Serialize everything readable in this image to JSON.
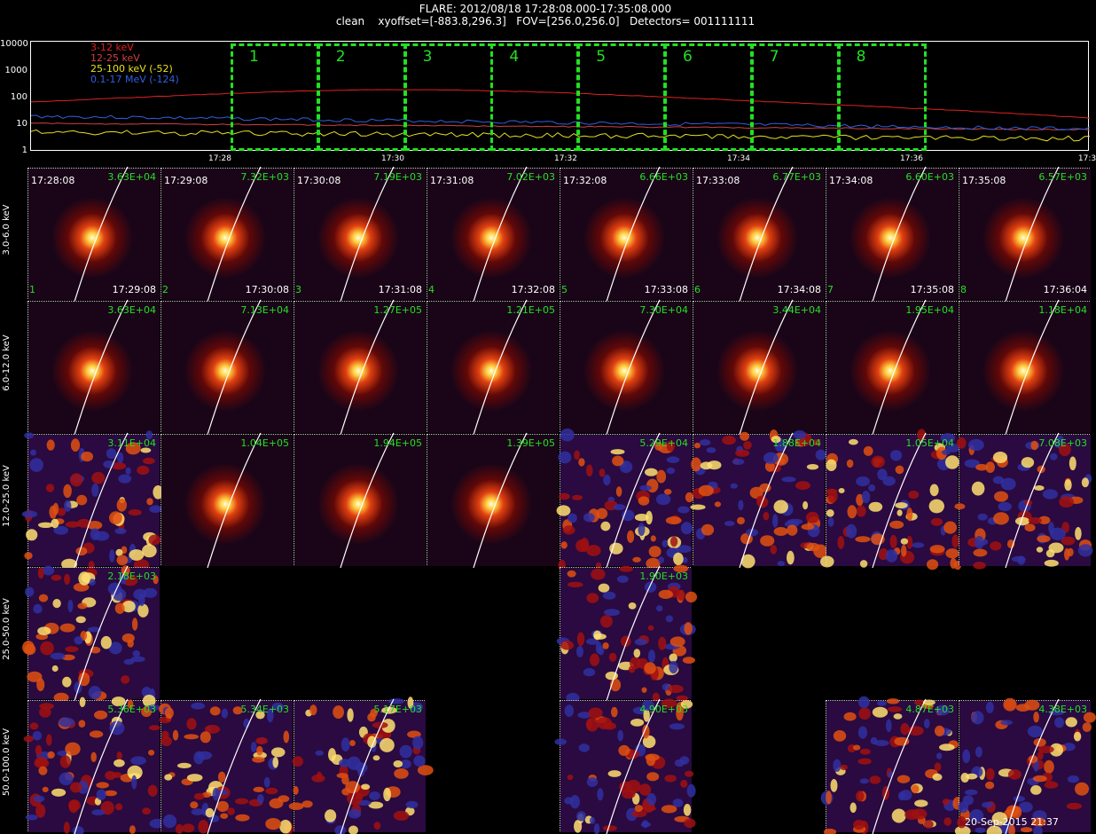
{
  "header": {
    "line1": "FLARE: 2012/08/18 17:28:08.000-17:35:08.000",
    "line2": "clean    xyoffset=[-883.8,296.3]   FOV=[256.0,256.0]   Detectors= 001111111"
  },
  "lightcurve": {
    "y_ticks": [
      "10000",
      "1000",
      "100",
      "10",
      "1"
    ],
    "x_ticks": [
      "17:28",
      "17:30",
      "17:32",
      "17:34",
      "17:36",
      "17:3"
    ],
    "legend": [
      {
        "label": "3-12 keV",
        "color": "#e02020"
      },
      {
        "label": "12-25 keV",
        "color": "#d04040"
      },
      {
        "label": "25-100 keV (-52)",
        "color": "#e8e020"
      },
      {
        "label": "0.1-17 MeV (-124)",
        "color": "#3060e0"
      }
    ],
    "intervals": [
      "1",
      "2",
      "3",
      "4",
      "5",
      "6",
      "7",
      "8"
    ]
  },
  "rows": [
    {
      "label": "3.0-6.0 keV",
      "panels": [
        {
          "num": "1",
          "start": "17:28:08",
          "end": "17:29:08",
          "value": "3.63E+04",
          "type": "source"
        },
        {
          "num": "2",
          "start": "17:29:08",
          "end": "17:30:08",
          "value": "7.32E+03",
          "type": "source"
        },
        {
          "num": "3",
          "start": "17:30:08",
          "end": "17:31:08",
          "value": "7.19E+03",
          "type": "source"
        },
        {
          "num": "4",
          "start": "17:31:08",
          "end": "17:32:08",
          "value": "7.02E+03",
          "type": "source"
        },
        {
          "num": "5",
          "start": "17:32:08",
          "end": "17:33:08",
          "value": "6.66E+03",
          "type": "source"
        },
        {
          "num": "6",
          "start": "17:33:08",
          "end": "17:34:08",
          "value": "6.77E+03",
          "type": "source"
        },
        {
          "num": "7",
          "start": "17:34:08",
          "end": "17:35:08",
          "value": "6.60E+03",
          "type": "source"
        },
        {
          "num": "8",
          "start": "17:35:08",
          "end": "17:36:04",
          "value": "6.57E+03",
          "type": "source"
        }
      ]
    },
    {
      "label": "6.0-12.0 keV",
      "panels": [
        {
          "value": "3.63E+04",
          "type": "source"
        },
        {
          "value": "7.13E+04",
          "type": "source"
        },
        {
          "value": "1.27E+05",
          "type": "source"
        },
        {
          "value": "1.21E+05",
          "type": "source"
        },
        {
          "value": "7.30E+04",
          "type": "source"
        },
        {
          "value": "3.44E+04",
          "type": "source"
        },
        {
          "value": "1.95E+04",
          "type": "source"
        },
        {
          "value": "1.18E+04",
          "type": "source"
        }
      ]
    },
    {
      "label": "12.0-25.0 keV",
      "panels": [
        {
          "value": "3.11E+04",
          "type": "noise"
        },
        {
          "value": "1.04E+05",
          "type": "source"
        },
        {
          "value": "1.94E+05",
          "type": "source"
        },
        {
          "value": "1.39E+05",
          "type": "source"
        },
        {
          "value": "5.29E+04",
          "type": "noise"
        },
        {
          "value": "1.88E+04",
          "type": "noise"
        },
        {
          "value": "1.05E+04",
          "type": "noise"
        },
        {
          "value": "7.08E+03",
          "type": "noise"
        }
      ]
    },
    {
      "label": "25.0-50.0 keV",
      "panels": [
        {
          "value": "2.18E+03",
          "type": "noise"
        },
        null,
        null,
        null,
        {
          "value": "1.90E+03",
          "type": "noise"
        },
        null,
        null,
        null
      ]
    },
    {
      "label": "50.0-100.0 keV",
      "panels": [
        {
          "value": "5.36E+03",
          "type": "noise"
        },
        {
          "value": "5.34E+03",
          "type": "noise"
        },
        {
          "value": "5.17E+03",
          "type": "noise"
        },
        null,
        {
          "value": "4.90E+03",
          "type": "noise"
        },
        null,
        {
          "value": "4.87E+03",
          "type": "noise"
        },
        {
          "value": "4.38E+03",
          "type": "noise"
        }
      ]
    }
  ],
  "footer": {
    "timestamp": "20-Sep-2015 21:37"
  },
  "colors": {
    "label_green": "#22e022",
    "limb": "#ffffff"
  }
}
